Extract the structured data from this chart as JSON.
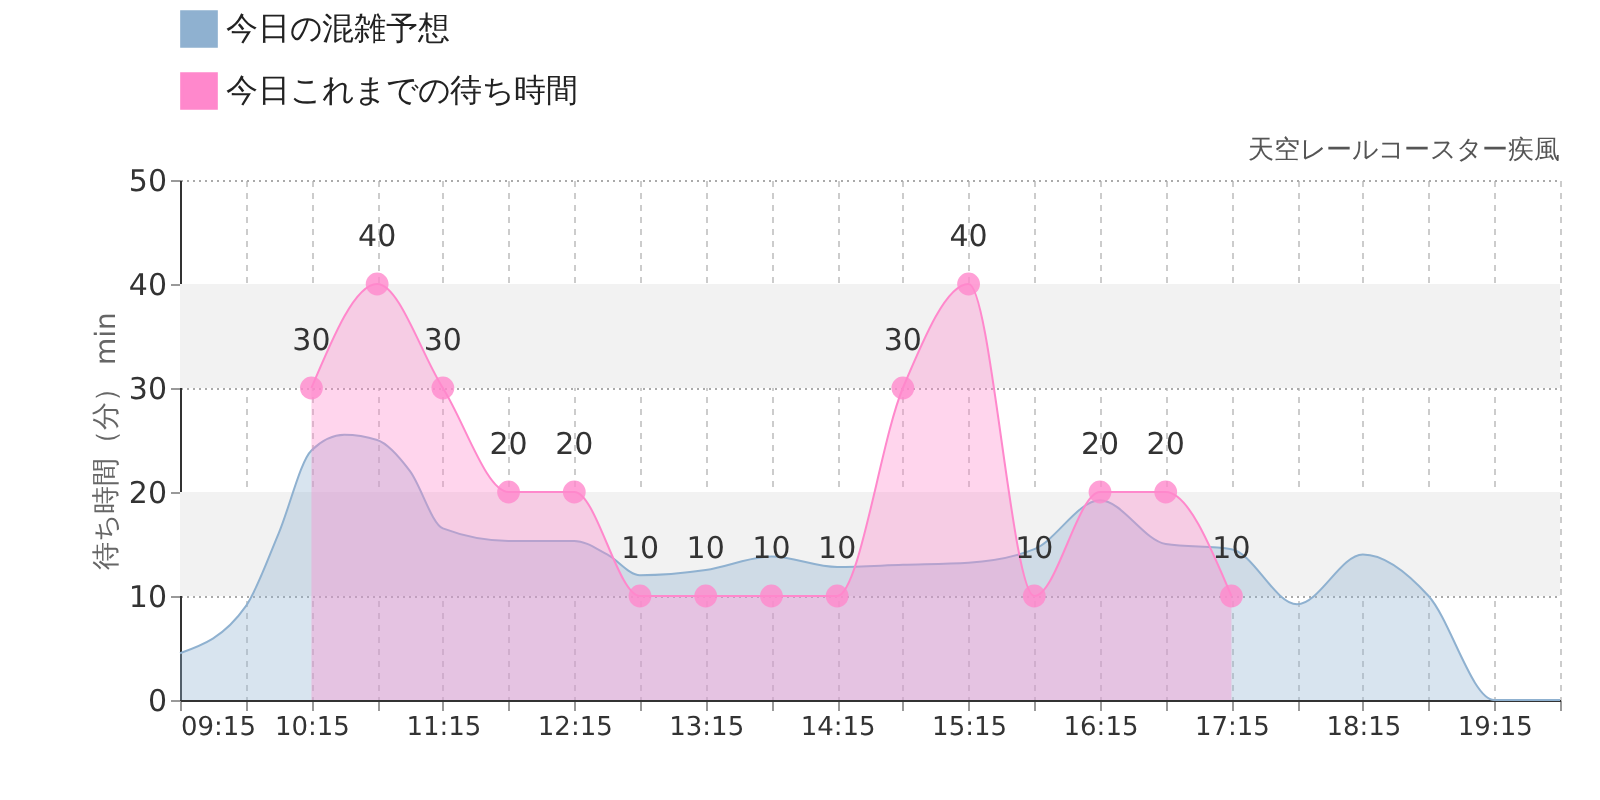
{
  "chart_data": {
    "type": "area",
    "subtitle": "天空レールコースター疾風",
    "ylabel": "待ち時間（分） min",
    "xlim": [
      9.25,
      19.75
    ],
    "xticks": [
      {
        "value": 9.25,
        "label": "09:15"
      },
      {
        "value": 9.75,
        "label": null
      },
      {
        "value": 10.25,
        "label": "10:15"
      },
      {
        "value": 10.75,
        "label": null
      },
      {
        "value": 11.25,
        "label": "11:15"
      },
      {
        "value": 11.75,
        "label": null
      },
      {
        "value": 12.25,
        "label": "12:15"
      },
      {
        "value": 12.75,
        "label": null
      },
      {
        "value": 13.25,
        "label": "13:15"
      },
      {
        "value": 13.75,
        "label": null
      },
      {
        "value": 14.25,
        "label": "14:15"
      },
      {
        "value": 14.75,
        "label": null
      },
      {
        "value": 15.25,
        "label": "15:15"
      },
      {
        "value": 15.75,
        "label": null
      },
      {
        "value": 16.25,
        "label": "16:15"
      },
      {
        "value": 16.75,
        "label": null
      },
      {
        "value": 17.25,
        "label": "17:15"
      },
      {
        "value": 17.75,
        "label": null
      },
      {
        "value": 18.25,
        "label": "18:15"
      },
      {
        "value": 18.75,
        "label": null
      },
      {
        "value": 19.25,
        "label": "19:15"
      },
      {
        "value": 19.75,
        "label": null
      }
    ],
    "ylim": [
      0,
      50
    ],
    "yticks": [
      0,
      10,
      20,
      30,
      40,
      50
    ],
    "grid": true,
    "legend": "top left",
    "bands": [
      {
        "axis": "y",
        "from": 10,
        "to": 20,
        "color": "#f2f2f2"
      },
      {
        "axis": "y",
        "from": 30,
        "to": 40,
        "color": "#f2f2f2"
      }
    ],
    "series": [
      {
        "name": "今日の混雑予想",
        "color": "#8fb1d0",
        "marker": "none",
        "x": [
          9.25,
          9.75,
          10.0,
          10.25,
          10.5,
          10.75,
          11.0,
          11.25,
          11.75,
          12.25,
          12.5,
          12.75,
          13.25,
          13.75,
          14.25,
          14.75,
          15.25,
          15.75,
          16.25,
          16.75,
          17.25,
          17.75,
          18.25,
          18.75,
          19.25,
          19.75
        ],
        "values": [
          4.5,
          9,
          16,
          24,
          25.5,
          25,
          22,
          16.5,
          15.3,
          15.3,
          14,
          12,
          12.5,
          13.8,
          12.8,
          13,
          13.2,
          14.5,
          19.2,
          15,
          14.5,
          9.2,
          14,
          10,
          0,
          0
        ]
      },
      {
        "name": "今日これまでの待ち時間",
        "color": "#ff88cc",
        "marker": "circle",
        "x": [
          10.25,
          10.75,
          11.25,
          11.75,
          12.25,
          12.75,
          13.25,
          13.75,
          14.25,
          14.75,
          15.25,
          15.75,
          16.25,
          16.75,
          17.25
        ],
        "values": [
          30,
          40,
          30,
          20,
          20,
          10,
          10,
          10,
          10,
          30,
          40,
          10,
          20,
          20,
          10
        ],
        "value_labels": [
          "30",
          "40",
          "30",
          "20",
          "20",
          "10",
          "10",
          "10",
          "10",
          "30",
          "40",
          "10",
          "20",
          "20",
          "10"
        ]
      }
    ]
  }
}
